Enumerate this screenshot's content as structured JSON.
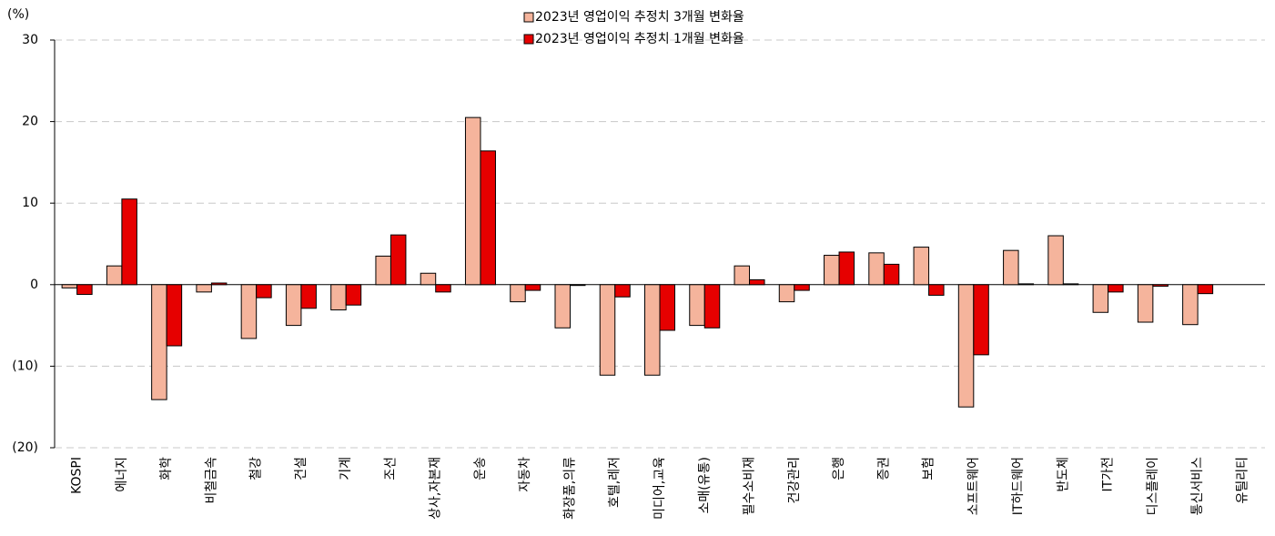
{
  "chart_data": {
    "type": "bar",
    "y_unit": "(%)",
    "categories": [
      "KOSPI",
      "에너지",
      "화학",
      "비철금속",
      "철강",
      "건설",
      "기계",
      "조선",
      "상사,자본재",
      "운송",
      "자동차",
      "화장품,의류",
      "호텔,레저",
      "미디어,교육",
      "소매(유통)",
      "필수소비재",
      "건강관리",
      "은행",
      "증권",
      "보험",
      "소프트웨어",
      "IT하드웨어",
      "반도체",
      "IT가전",
      "디스플레이",
      "통신서비스",
      "유틸리티"
    ],
    "series": [
      {
        "name": "2023년 영업이익 추정치 3개월 변화율",
        "color": "#f5b49c",
        "values": [
          -0.4,
          2.3,
          -14.1,
          -0.9,
          -6.6,
          -5.0,
          -3.1,
          3.5,
          1.4,
          20.5,
          -2.1,
          -5.3,
          -11.1,
          -11.1,
          -5.0,
          2.3,
          -2.1,
          3.6,
          3.9,
          4.6,
          -15.0,
          4.2,
          6.0,
          -3.4,
          -4.6,
          -4.9,
          null
        ]
      },
      {
        "name": "2023년 영업이익 추정치 1개월 변화율",
        "color": "#e60000",
        "values": [
          -1.2,
          10.5,
          -7.5,
          0.2,
          -1.6,
          -2.9,
          -2.5,
          6.1,
          -0.9,
          16.4,
          -0.7,
          -0.1,
          -1.5,
          -5.6,
          -5.3,
          0.6,
          -0.7,
          4.0,
          2.5,
          -1.3,
          -8.6,
          0.1,
          0.1,
          -0.9,
          -0.2,
          -1.1,
          null
        ]
      }
    ],
    "ylim": [
      -20,
      30
    ],
    "yticks": [
      {
        "value": -20,
        "label": "(20)"
      },
      {
        "value": -10,
        "label": "(10)"
      },
      0,
      10,
      20,
      30
    ],
    "grid": true,
    "legend": "top"
  }
}
